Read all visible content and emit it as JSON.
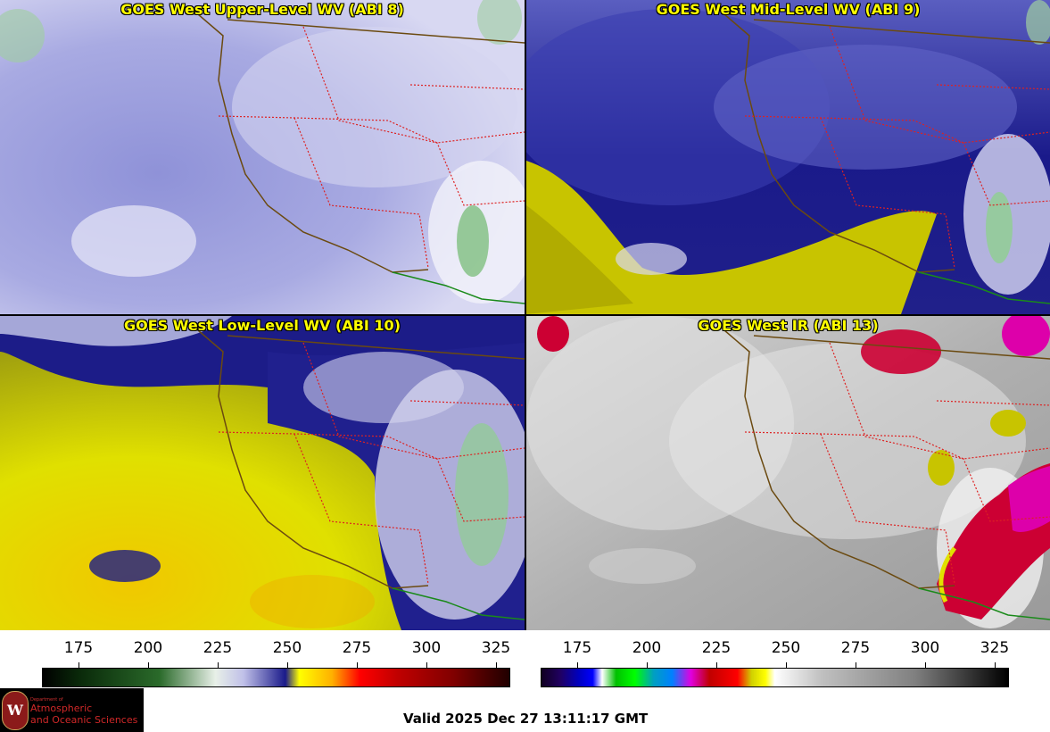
{
  "panels": [
    {
      "title": "GOES West Upper-Level WV (ABI 8)"
    },
    {
      "title": "GOES West Mid-Level WV (ABI 9)"
    },
    {
      "title": "GOES West Low-Level WV (ABI 10)"
    },
    {
      "title": "GOES West IR (ABI 13)"
    }
  ],
  "colorbars": [
    {
      "ticks": [
        "175",
        "200",
        "225",
        "250",
        "275",
        "300",
        "325"
      ]
    },
    {
      "ticks": [
        "175",
        "200",
        "225",
        "250",
        "275",
        "300",
        "325"
      ]
    }
  ],
  "logo": {
    "department": "Department of",
    "line1": "Atmospheric",
    "line2": "and Oceanic Sciences"
  },
  "valid_time": "Valid 2025 Dec 27 13:11:17 GMT"
}
